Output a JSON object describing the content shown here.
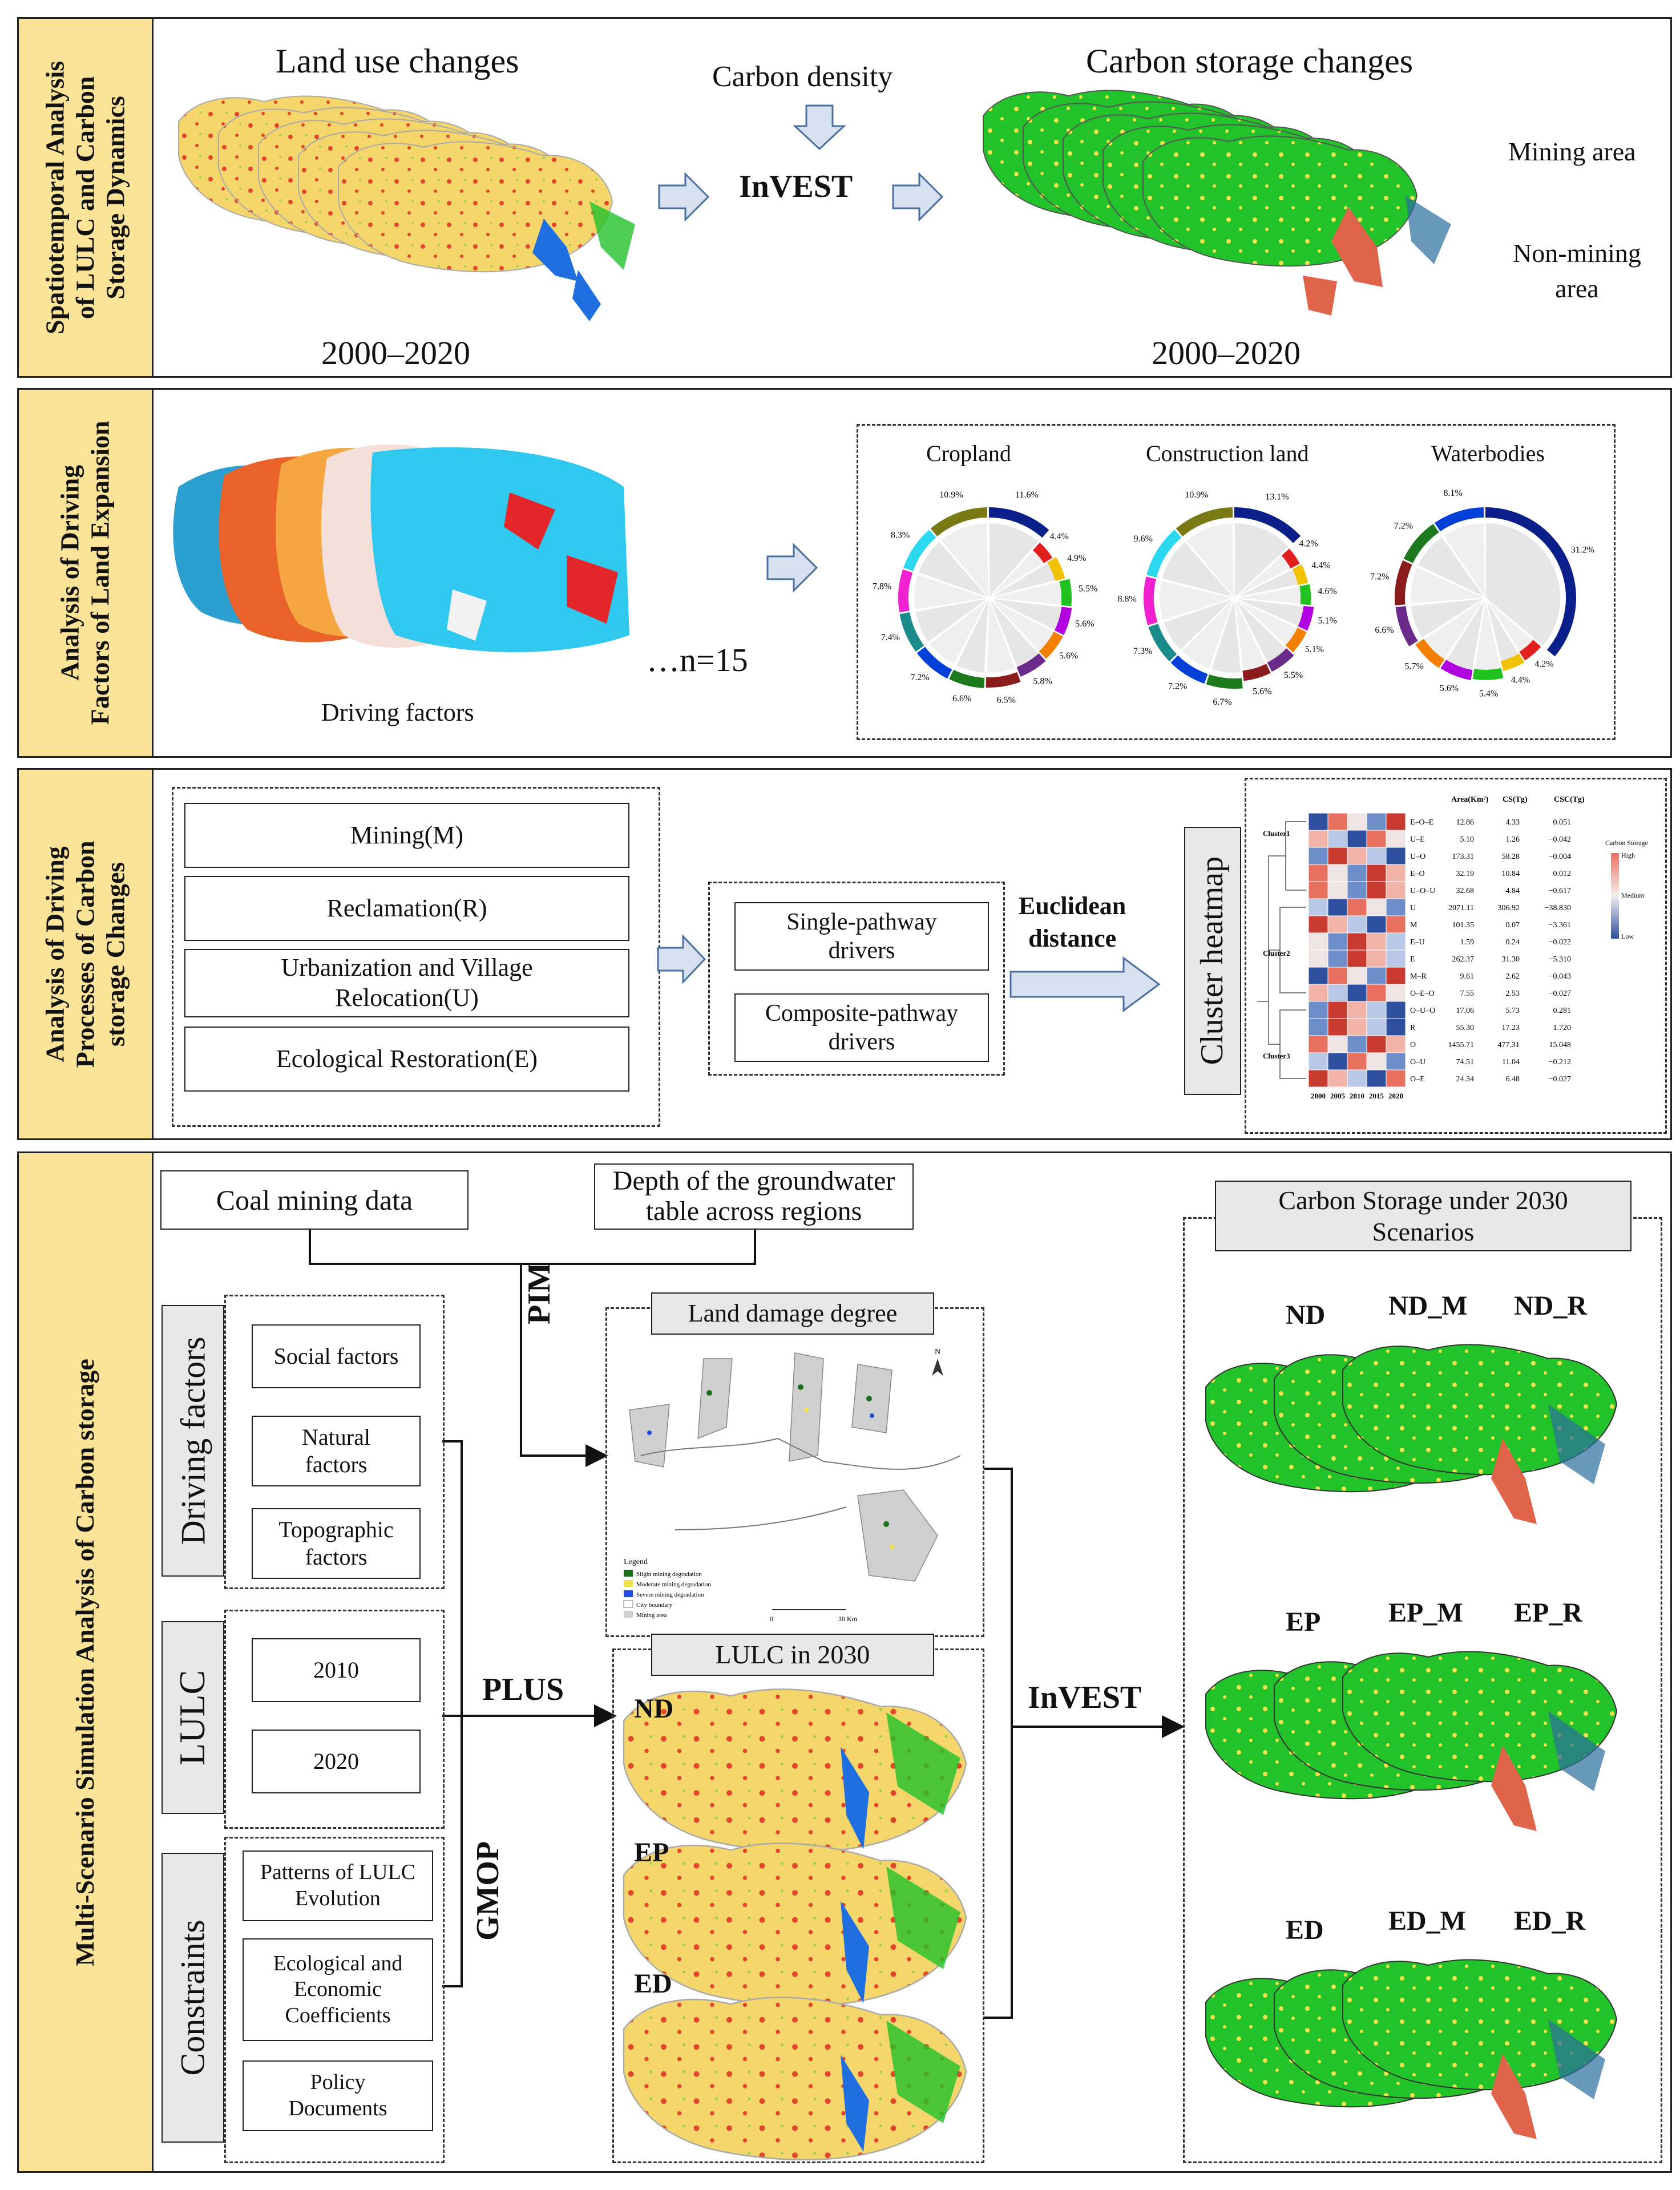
{
  "section1": {
    "title": "Spatiotemporal Analysis of LULC and Carbon Storage Dynamics",
    "title_lines": [
      "Spatiotemporal Analysis",
      "of LULC and Carbon",
      "Storage Dynamics"
    ],
    "land_use_label": "Land use changes",
    "carbon_density": "Carbon density",
    "invest": "InVEST",
    "carbon_storage_label": "Carbon storage changes",
    "years_left": "2000–2020",
    "years_right": "2000–2020",
    "mining_area": "Mining area",
    "non_mining_area_l1": "Non-mining",
    "non_mining_area_l2": "area"
  },
  "section2": {
    "title_lines": [
      "Analysis of Driving",
      "Factors of Land Expansion"
    ],
    "driving_factors": "Driving factors",
    "n_label": "…n=15",
    "charts_titles": [
      "Cropland",
      "Construction land",
      "Waterbodies"
    ]
  },
  "chart_data": [
    {
      "type": "pie",
      "title": "Cropland",
      "values_pct": [
        11.6,
        4.4,
        4.9,
        5.5,
        5.6,
        5.6,
        5.8,
        6.5,
        6.6,
        7.2,
        7.4,
        7.8,
        8.3,
        10.9
      ],
      "labels": [
        "11.6%",
        "4.4%",
        "4.9%",
        "5.5%",
        "5.6%",
        "5.6%",
        "5.8%",
        "6.5%",
        "6.6%",
        "7.2%",
        "7.4%",
        "7.8%",
        "8.3%",
        "10.9%"
      ]
    },
    {
      "type": "pie",
      "title": "Construction land",
      "values_pct": [
        13.1,
        4.2,
        4.4,
        4.6,
        5.1,
        5.1,
        5.5,
        5.6,
        6.7,
        7.2,
        7.3,
        8.8,
        9.6,
        10.9
      ],
      "labels": [
        "13.1%",
        "4.2%",
        "4.4%",
        "4.6%",
        "5.1%",
        "5.1%",
        "5.5%",
        "5.6%",
        "6.7%",
        "7.2%",
        "7.3%",
        "8.8%",
        "9.6%",
        "10.9%"
      ]
    },
    {
      "type": "pie",
      "title": "Waterbodies",
      "values_pct": [
        31.2,
        4.2,
        4.4,
        5.4,
        5.6,
        5.7,
        6.6,
        7.2,
        7.2,
        8.1
      ],
      "labels": [
        "31.2%",
        "4.2%",
        "4.4%",
        "5.4%",
        "5.6%",
        "5.7%",
        "6.6%",
        "7.2%",
        "7.2%",
        "8.1%"
      ]
    },
    {
      "type": "heatmap",
      "title": "Cluster heatmap",
      "years": [
        "2000",
        "2005",
        "2010",
        "2015",
        "2020"
      ],
      "clusters": [
        "Cluster1",
        "Cluster2",
        "Cluster3"
      ],
      "headers": [
        "Area(Km²)",
        "CS(Tg)",
        "CSC(Tg)"
      ],
      "rows": [
        {
          "code": "E–O–E",
          "area": "12.86",
          "cs": "4.33",
          "csc": "0.051"
        },
        {
          "code": "U–E",
          "area": "5.10",
          "cs": "1.26",
          "csc": "−0.042"
        },
        {
          "code": "U–O",
          "area": "173.31",
          "cs": "58.28",
          "csc": "−0.004"
        },
        {
          "code": "E–O",
          "area": "32.19",
          "cs": "10.84",
          "csc": "0.012"
        },
        {
          "code": "U–O–U",
          "area": "32.68",
          "cs": "4.84",
          "csc": "−0.617"
        },
        {
          "code": "U",
          "area": "2071.11",
          "cs": "306.92",
          "csc": "−38.830"
        },
        {
          "code": "M",
          "area": "101.35",
          "cs": "0.07",
          "csc": "−3.361"
        },
        {
          "code": "E–U",
          "area": "1.59",
          "cs": "0.24",
          "csc": "−0.022"
        },
        {
          "code": "E",
          "area": "262.37",
          "cs": "31.30",
          "csc": "−5.310"
        },
        {
          "code": "M–R",
          "area": "9.61",
          "cs": "2.62",
          "csc": "−0.043"
        },
        {
          "code": "O–E–O",
          "area": "7.55",
          "cs": "2.53",
          "csc": "−0.027"
        },
        {
          "code": "O–U–O",
          "area": "17.06",
          "cs": "5.73",
          "csc": "0.281"
        },
        {
          "code": "R",
          "area": "55.30",
          "cs": "17.23",
          "csc": "1.720"
        },
        {
          "code": "O",
          "area": "1455.71",
          "cs": "477.31",
          "csc": "15.048"
        },
        {
          "code": "O–U",
          "area": "74.51",
          "cs": "11.04",
          "csc": "−0.212"
        },
        {
          "code": "O–E",
          "area": "24.34",
          "cs": "6.48",
          "csc": "−0.027"
        }
      ],
      "legend": {
        "title": "Carbon Storage",
        "high": "High",
        "medium": "Medium",
        "low": "Low"
      }
    }
  ],
  "section3": {
    "title_lines": [
      "Analysis of Driving",
      "Processes of Carbon",
      "storage Changes"
    ],
    "drivers": [
      "Mining(M)",
      "Reclamation(R)",
      "Urbanization and Village",
      "Relocation(U)",
      "Ecological Restoration(E)"
    ],
    "single_pathway_l1": "Single-pathway",
    "single_pathway_l2": "drivers",
    "composite_pathway_l1": "Composite-pathway",
    "composite_pathway_l2": "drivers",
    "euclidean_l1": "Euclidean",
    "euclidean_l2": "distance",
    "cluster_heatmap": "Cluster heatmap"
  },
  "section4": {
    "title": "Multi-Scenario Simulation Analysis of Carbon storage",
    "coal_mining": "Coal mining data",
    "groundwater_l1": "Depth of the groundwater",
    "groundwater_l2": "table across regions",
    "pim": "PIM",
    "land_damage": "Land damage degree",
    "driving_factors_group": "Driving factors",
    "social": "Social factors",
    "natural_l1": "Natural",
    "natural_l2": "factors",
    "topographic_l1": "Topographic",
    "topographic_l2": "factors",
    "lulc_group": "LULC",
    "y2010": "2010",
    "y2020": "2020",
    "plus": "PLUS",
    "gmop": "GMOP",
    "constraints_group": "Constraints",
    "patterns_l1": "Patterns of LULC",
    "patterns_l2": "Evolution",
    "eco_l1": "Ecological and",
    "eco_l2": "Economic",
    "eco_l3": "Coefficients",
    "policy_l1": "Policy",
    "policy_l2": "Documents",
    "lulc_2030": "LULC in 2030",
    "scenario_nd": "ND",
    "scenario_ep": "EP",
    "scenario_ed": "ED",
    "invest": "InVEST",
    "cs2030_l1": "Carbon Storage under 2030",
    "cs2030_l2": "Scenarios",
    "row_nd": [
      "ND",
      "ND_M",
      "ND_R"
    ],
    "row_ep": [
      "EP",
      "EP_M",
      "EP_R"
    ],
    "row_ed": [
      "ED",
      "ED_M",
      "ED_R"
    ],
    "map_legend": {
      "title": "Legend",
      "items": [
        "Slight mining degradation",
        "Moderate mining degradation",
        "Severe mining degradation",
        "City boundary",
        "Mining area"
      ],
      "scale": "30 Km",
      "scale_zero": "0",
      "north": "N"
    }
  },
  "colors": {
    "sidebar": "#fbe497",
    "arrow_fill": "#d7e1ef",
    "arrow_stroke": "#4a6fa0",
    "land_yellow": "#f5d66b",
    "land_red": "#e2462b",
    "water_blue": "#1f6fe0",
    "veg_green": "#22c22a"
  }
}
